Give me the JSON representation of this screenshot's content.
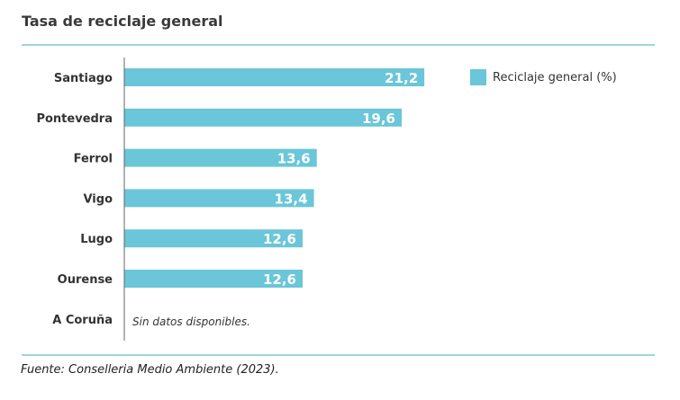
{
  "header": {
    "title": "Tasa de reciclaje general"
  },
  "chart_data": {
    "type": "bar",
    "orientation": "horizontal",
    "categories": [
      "Santiago",
      "Pontevedra",
      "Ferrol",
      "Vigo",
      "Lugo",
      "Ourense",
      "A Coruña"
    ],
    "series": [
      {
        "name": "Reciclaje general (%)",
        "values": [
          21.2,
          19.6,
          13.6,
          13.4,
          12.6,
          12.6,
          null
        ]
      }
    ],
    "data_labels": [
      "21,2",
      "19,6",
      "13,6",
      "13,4",
      "12,6",
      "12,6",
      ""
    ],
    "xlim": [
      0,
      28
    ],
    "legend_position": "top-right",
    "bar_color": "#6ac6d8",
    "grid": false
  },
  "notes": {
    "no_data": "Sin datos disponibles."
  },
  "footer": {
    "source": "Fuente: Conselleria Medio Ambiente (2023)."
  }
}
